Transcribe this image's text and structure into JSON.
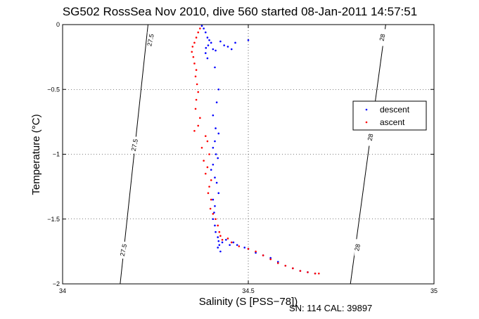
{
  "chart_data": {
    "type": "scatter",
    "title": "SG502 RossSea Nov 2010, dive 560 started 08-Jan-2011 14:57:51",
    "xlabel": "Salinity (S [PSS−78])",
    "ylabel": "Temperature (°C)",
    "xlim": [
      34,
      35
    ],
    "ylim": [
      -2,
      0
    ],
    "y_reversed": false,
    "xticks": [
      34,
      34.5,
      35
    ],
    "xtick_labels": [
      "34",
      "34.5",
      "35"
    ],
    "yticks": [
      0,
      -0.5,
      -1,
      -1.5,
      -2
    ],
    "ytick_labels": [
      "0",
      "−0.5",
      "−1",
      "−1.5",
      "−2"
    ],
    "grid": true,
    "legend_position": "right",
    "footer": "SN: 114  CAL: 39897",
    "contours": [
      {
        "label": "27.5",
        "points": [
          [
            34.23,
            0
          ],
          [
            34.155,
            -2
          ]
        ]
      },
      {
        "label": "28",
        "points": [
          [
            34.87,
            0
          ],
          [
            34.775,
            -2
          ]
        ]
      }
    ],
    "contour_labels": [
      {
        "text": "27.5",
        "x": 34.238,
        "y": -0.12
      },
      {
        "text": "27.5",
        "x": 34.195,
        "y": -0.93
      },
      {
        "text": "27.5",
        "x": 34.165,
        "y": -1.74
      },
      {
        "text": "28",
        "x": 34.862,
        "y": -0.1
      },
      {
        "text": "28",
        "x": 34.83,
        "y": -0.87
      },
      {
        "text": "28",
        "x": 34.795,
        "y": -1.72
      }
    ],
    "series": [
      {
        "name": "descent",
        "color": "#0000ff",
        "points": [
          [
            34.375,
            -0.01
          ],
          [
            34.38,
            -0.03
          ],
          [
            34.385,
            -0.06
          ],
          [
            34.39,
            -0.1
          ],
          [
            34.395,
            -0.12
          ],
          [
            34.4,
            -0.14
          ],
          [
            34.392,
            -0.16
          ],
          [
            34.386,
            -0.18
          ],
          [
            34.405,
            -0.19
          ],
          [
            34.412,
            -0.2
          ],
          [
            34.425,
            -0.13
          ],
          [
            34.435,
            -0.16
          ],
          [
            34.445,
            -0.17
          ],
          [
            34.455,
            -0.19
          ],
          [
            34.465,
            -0.14
          ],
          [
            34.5,
            -0.12
          ],
          [
            34.385,
            -0.22
          ],
          [
            34.39,
            -0.26
          ],
          [
            34.41,
            -0.33
          ],
          [
            34.42,
            -0.5
          ],
          [
            34.415,
            -0.6
          ],
          [
            34.405,
            -0.7
          ],
          [
            34.412,
            -0.8
          ],
          [
            34.42,
            -0.84
          ],
          [
            34.41,
            -0.9
          ],
          [
            34.405,
            -0.95
          ],
          [
            34.413,
            -1.0
          ],
          [
            34.418,
            -1.03
          ],
          [
            34.405,
            -1.08
          ],
          [
            34.4,
            -1.12
          ],
          [
            34.41,
            -1.18
          ],
          [
            34.415,
            -1.22
          ],
          [
            34.42,
            -1.3
          ],
          [
            34.405,
            -1.35
          ],
          [
            34.41,
            -1.4
          ],
          [
            34.408,
            -1.45
          ],
          [
            34.405,
            -1.5
          ],
          [
            34.41,
            -1.55
          ],
          [
            34.412,
            -1.6
          ],
          [
            34.418,
            -1.64
          ],
          [
            34.42,
            -1.67
          ],
          [
            34.422,
            -1.7
          ],
          [
            34.418,
            -1.72
          ],
          [
            34.425,
            -1.75
          ],
          [
            34.43,
            -1.68
          ],
          [
            34.44,
            -1.66
          ],
          [
            34.45,
            -1.7
          ],
          [
            34.46,
            -1.68
          ],
          [
            34.47,
            -1.7
          ],
          [
            34.49,
            -1.72
          ],
          [
            34.5,
            -1.73
          ],
          [
            34.52,
            -1.76
          ],
          [
            34.54,
            -1.78
          ],
          [
            34.56,
            -1.8
          ],
          [
            34.58,
            -1.83
          ],
          [
            34.6,
            -1.86
          ],
          [
            34.62,
            -1.88
          ],
          [
            34.64,
            -1.9
          ],
          [
            34.66,
            -1.91
          ],
          [
            34.68,
            -1.92
          ]
        ]
      },
      {
        "name": "ascent",
        "color": "#ff0000",
        "points": [
          [
            34.37,
            -0.03
          ],
          [
            34.365,
            -0.06
          ],
          [
            34.36,
            -0.1
          ],
          [
            34.355,
            -0.14
          ],
          [
            34.35,
            -0.17
          ],
          [
            34.348,
            -0.21
          ],
          [
            34.352,
            -0.25
          ],
          [
            34.355,
            -0.3
          ],
          [
            34.36,
            -0.35
          ],
          [
            34.358,
            -0.4
          ],
          [
            34.362,
            -0.46
          ],
          [
            34.365,
            -0.52
          ],
          [
            34.36,
            -0.58
          ],
          [
            34.358,
            -0.65
          ],
          [
            34.37,
            -0.72
          ],
          [
            34.365,
            -0.78
          ],
          [
            34.355,
            -0.82
          ],
          [
            34.385,
            -0.86
          ],
          [
            34.39,
            -0.9
          ],
          [
            34.375,
            -0.95
          ],
          [
            34.395,
            -1.0
          ],
          [
            34.38,
            -1.05
          ],
          [
            34.39,
            -1.1
          ],
          [
            34.385,
            -1.15
          ],
          [
            34.4,
            -1.2
          ],
          [
            34.395,
            -1.25
          ],
          [
            34.392,
            -1.3
          ],
          [
            34.4,
            -1.35
          ],
          [
            34.398,
            -1.42
          ],
          [
            34.405,
            -1.46
          ],
          [
            34.412,
            -1.5
          ],
          [
            34.418,
            -1.55
          ],
          [
            34.422,
            -1.6
          ],
          [
            34.425,
            -1.63
          ],
          [
            34.43,
            -1.66
          ],
          [
            34.445,
            -1.65
          ],
          [
            34.455,
            -1.68
          ],
          [
            34.475,
            -1.71
          ],
          [
            34.5,
            -1.73
          ],
          [
            34.52,
            -1.75
          ],
          [
            34.54,
            -1.78
          ],
          [
            34.56,
            -1.81
          ],
          [
            34.58,
            -1.84
          ],
          [
            34.6,
            -1.86
          ],
          [
            34.62,
            -1.88
          ],
          [
            34.64,
            -1.9
          ],
          [
            34.66,
            -1.91
          ],
          [
            34.68,
            -1.92
          ],
          [
            34.69,
            -1.92
          ]
        ]
      }
    ]
  }
}
